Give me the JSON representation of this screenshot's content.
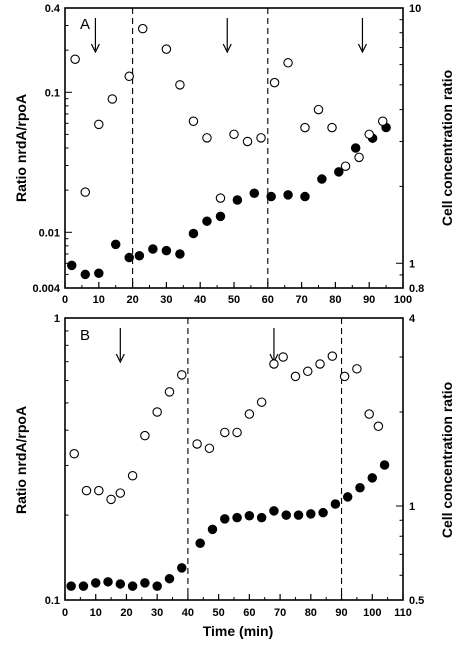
{
  "chart_data": [
    {
      "type": "scatter",
      "panel": "A",
      "xlabel": "",
      "ylabel": "Ratio nrdA/rpoA",
      "y2label": "Cell concentration ratio",
      "xlim": [
        0,
        100
      ],
      "ylim": [
        0.004,
        0.4
      ],
      "y2lim": [
        0.8,
        10
      ],
      "yscale": "log",
      "y2scale": "log",
      "x_ticks": [
        "0",
        "10",
        "20",
        "30",
        "40",
        "50",
        "60",
        "70",
        "80",
        "90",
        "100"
      ],
      "y_ticks": [
        {
          "value": 0.4,
          "label": "0.4"
        },
        {
          "value": 0.1,
          "label": "0.1"
        },
        {
          "value": 0.01,
          "label": "0.01"
        },
        {
          "value": 0.004,
          "label": "0.004"
        }
      ],
      "y2_ticks": [
        {
          "value": 10,
          "label": "10"
        },
        {
          "value": 1,
          "label": "1"
        },
        {
          "value": 0.8,
          "label": "0.8"
        }
      ],
      "vlines": [
        20,
        60
      ],
      "arrows": [
        9,
        48,
        88
      ],
      "series": [
        {
          "marker": "filled-circle",
          "axis": "left",
          "x": [
            2,
            6,
            10,
            15,
            19,
            22,
            26,
            30,
            34,
            38,
            42,
            46,
            51,
            56,
            61,
            66,
            71,
            76,
            81,
            86,
            91,
            95
          ],
          "y": [
            0.0058,
            0.005,
            0.0051,
            0.0082,
            0.0066,
            0.0068,
            0.0076,
            0.0074,
            0.007,
            0.0098,
            0.012,
            0.013,
            0.017,
            0.019,
            0.018,
            0.0185,
            0.018,
            0.024,
            0.027,
            0.04,
            0.047,
            0.056
          ]
        },
        {
          "marker": "open-circle",
          "axis": "right",
          "x": [
            3,
            6,
            10,
            14,
            19,
            23,
            30,
            34,
            38,
            42,
            46,
            50,
            54,
            58,
            62,
            66,
            71,
            75,
            79,
            83,
            87,
            90,
            94
          ],
          "y": [
            6.3,
            1.9,
            3.5,
            4.4,
            5.4,
            8.3,
            6.9,
            5.0,
            3.6,
            3.1,
            1.8,
            3.2,
            3.0,
            3.1,
            5.1,
            6.1,
            3.4,
            4.0,
            3.4,
            2.4,
            2.6,
            3.2,
            3.6
          ]
        }
      ]
    },
    {
      "type": "scatter",
      "panel": "B",
      "xlabel": "Time (min)",
      "ylabel": "Ratio nrdA/rpoA",
      "y2label": "Cell concentration ratio",
      "xlim": [
        0,
        110
      ],
      "ylim": [
        0.1,
        1
      ],
      "y2lim": [
        0.5,
        4
      ],
      "yscale": "log",
      "y2scale": "log",
      "x_ticks": [
        "0",
        "10",
        "20",
        "30",
        "40",
        "50",
        "60",
        "70",
        "80",
        "90",
        "100",
        "110"
      ],
      "y_ticks": [
        {
          "value": 1,
          "label": "1"
        },
        {
          "value": 0.1,
          "label": "0.1"
        }
      ],
      "y2_ticks": [
        {
          "value": 4,
          "label": "4"
        },
        {
          "value": 1,
          "label": "1"
        },
        {
          "value": 0.5,
          "label": "0.5"
        }
      ],
      "vlines": [
        40,
        90
      ],
      "arrows": [
        18,
        68
      ],
      "series": [
        {
          "marker": "filled-circle",
          "axis": "left",
          "x": [
            2,
            6,
            10,
            14,
            18,
            22,
            26,
            30,
            34,
            38,
            44,
            48,
            52,
            56,
            60,
            64,
            68,
            72,
            76,
            80,
            84,
            88,
            92,
            96,
            100,
            104
          ],
          "y": [
            0.112,
            0.112,
            0.115,
            0.116,
            0.114,
            0.112,
            0.115,
            0.112,
            0.119,
            0.13,
            0.159,
            0.178,
            0.194,
            0.196,
            0.199,
            0.196,
            0.207,
            0.2,
            0.2,
            0.202,
            0.204,
            0.219,
            0.232,
            0.25,
            0.271,
            0.301
          ]
        },
        {
          "marker": "open-circle",
          "axis": "right",
          "x": [
            3,
            7,
            11,
            15,
            18,
            22,
            26,
            30,
            34,
            38,
            43,
            47,
            52,
            56,
            60,
            64,
            68,
            71,
            75,
            79,
            83,
            87,
            91,
            95,
            99,
            102
          ],
          "y": [
            1.47,
            1.12,
            1.12,
            1.05,
            1.1,
            1.25,
            1.68,
            2.0,
            2.32,
            2.63,
            1.58,
            1.53,
            1.72,
            1.72,
            1.97,
            2.15,
            2.85,
            3.0,
            2.6,
            2.7,
            2.85,
            3.02,
            2.6,
            2.75,
            1.97,
            1.8
          ]
        }
      ]
    }
  ]
}
